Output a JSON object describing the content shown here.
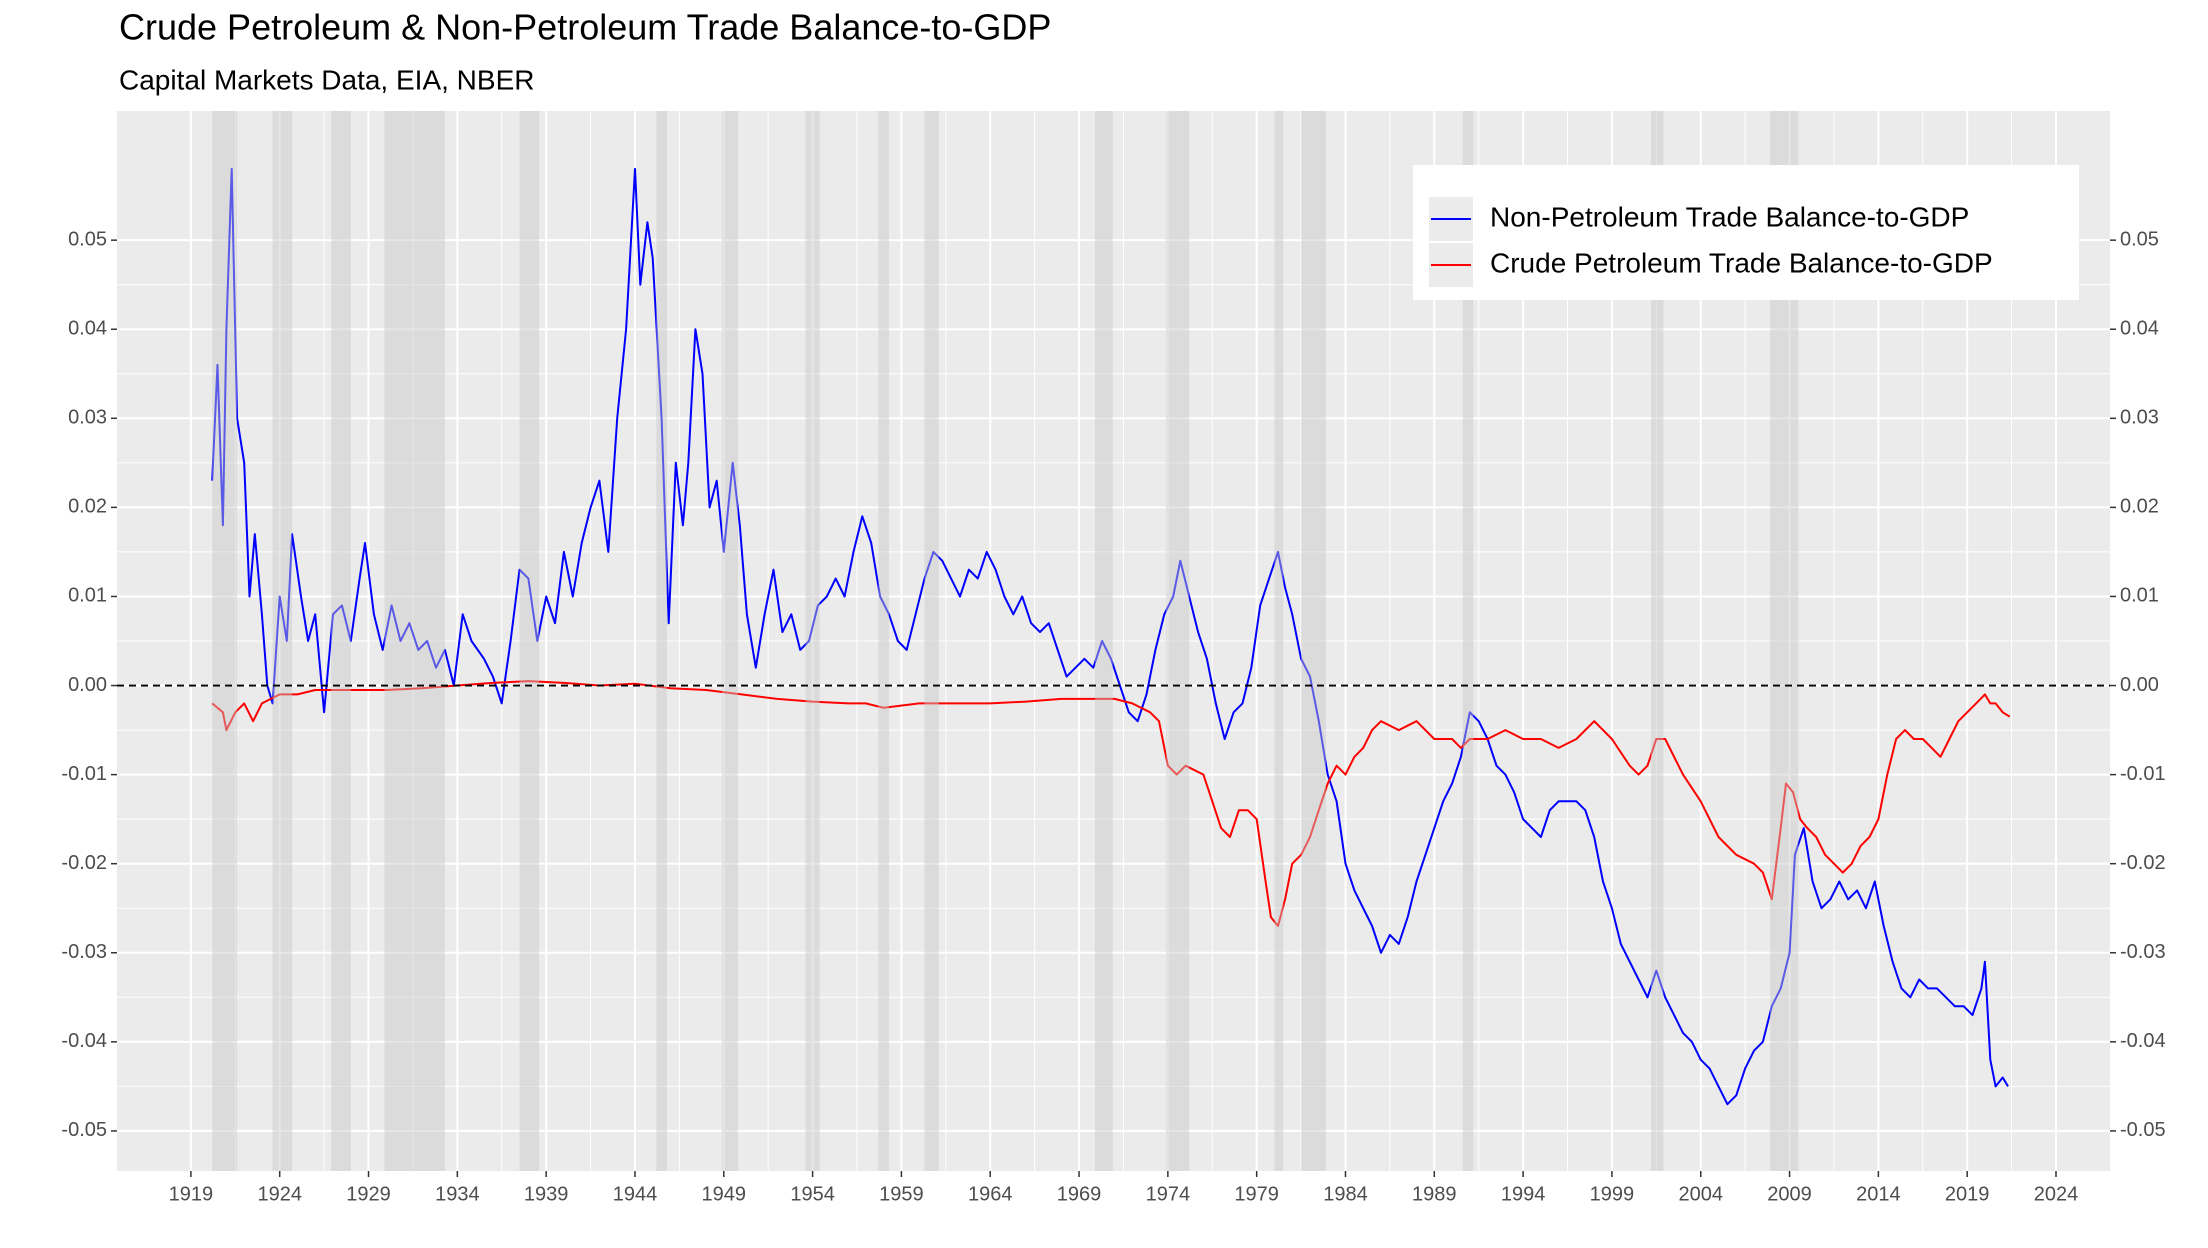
{
  "chart_data": {
    "type": "line",
    "title": "Crude Petroleum & Non-Petroleum Trade Balance-to-GDP",
    "subtitle": "Capital Markets Data, EIA, NBER",
    "series": [
      {
        "name": "Non-Petroleum Trade Balance-to-GDP",
        "color": "#0000ff",
        "x": [
          1920.2,
          1920.5,
          1920.8,
          1921.0,
          1921.3,
          1921.6,
          1922.0,
          1922.3,
          1922.6,
          1923.0,
          1923.3,
          1923.6,
          1924.0,
          1924.4,
          1924.7,
          1925.2,
          1925.6,
          1926.0,
          1926.5,
          1927.0,
          1927.5,
          1928.0,
          1928.5,
          1928.8,
          1929.3,
          1929.8,
          1930.3,
          1930.8,
          1931.3,
          1931.8,
          1932.3,
          1932.8,
          1933.3,
          1933.8,
          1934.3,
          1934.8,
          1935.5,
          1936.0,
          1936.5,
          1937.0,
          1937.5,
          1938.0,
          1938.5,
          1939.0,
          1939.5,
          1940.0,
          1940.5,
          1941.0,
          1941.5,
          1942.0,
          1942.5,
          1943.0,
          1943.5,
          1944.0,
          1944.3,
          1944.7,
          1945.0,
          1945.5,
          1945.9,
          1946.3,
          1946.7,
          1947.0,
          1947.4,
          1947.8,
          1948.2,
          1948.6,
          1949.0,
          1949.5,
          1949.9,
          1950.3,
          1950.8,
          1951.3,
          1951.8,
          1952.3,
          1952.8,
          1953.3,
          1953.8,
          1954.3,
          1954.8,
          1955.3,
          1955.8,
          1956.3,
          1956.8,
          1957.3,
          1957.8,
          1958.3,
          1958.8,
          1959.3,
          1959.8,
          1960.3,
          1960.8,
          1961.3,
          1961.8,
          1962.3,
          1962.8,
          1963.3,
          1963.8,
          1964.3,
          1964.8,
          1965.3,
          1965.8,
          1966.3,
          1966.8,
          1967.3,
          1967.8,
          1968.3,
          1968.8,
          1969.3,
          1969.8,
          1970.3,
          1970.8,
          1971.3,
          1971.8,
          1972.3,
          1972.8,
          1973.3,
          1973.8,
          1974.3,
          1974.7,
          1975.2,
          1975.7,
          1976.2,
          1976.7,
          1977.2,
          1977.7,
          1978.2,
          1978.7,
          1979.2,
          1979.7,
          1980.2,
          1980.6,
          1981.0,
          1981.5,
          1982.0,
          1982.5,
          1983.0,
          1983.5,
          1984.0,
          1984.5,
          1985.0,
          1985.5,
          1986.0,
          1986.5,
          1987.0,
          1987.5,
          1988.0,
          1988.5,
          1989.0,
          1989.5,
          1990.0,
          1990.5,
          1991.0,
          1991.5,
          1992.0,
          1992.5,
          1993.0,
          1993.5,
          1994.0,
          1994.5,
          1995.0,
          1995.5,
          1996.0,
          1996.5,
          1997.0,
          1997.5,
          1998.0,
          1998.5,
          1999.0,
          1999.5,
          2000.0,
          2000.5,
          2001.0,
          2001.5,
          2002.0,
          2002.5,
          2003.0,
          2003.5,
          2004.0,
          2004.5,
          2005.0,
          2005.5,
          2006.0,
          2006.5,
          2007.0,
          2007.5,
          2008.0,
          2008.5,
          2009.0,
          2009.3,
          2009.8,
          2010.3,
          2010.8,
          2011.3,
          2011.8,
          2012.3,
          2012.8,
          2013.3,
          2013.8,
          2014.3,
          2014.8,
          2015.3,
          2015.8,
          2016.3,
          2016.8,
          2017.3,
          2017.8,
          2018.3,
          2018.8,
          2019.3,
          2019.8,
          2020.0,
          2020.3,
          2020.6,
          2021.0,
          2021.3
        ],
        "values": [
          0.023,
          0.036,
          0.018,
          0.04,
          0.058,
          0.03,
          0.025,
          0.01,
          0.017,
          0.008,
          0.0,
          -0.002,
          0.01,
          0.005,
          0.017,
          0.01,
          0.005,
          0.008,
          -0.003,
          0.008,
          0.009,
          0.005,
          0.012,
          0.016,
          0.008,
          0.004,
          0.009,
          0.005,
          0.007,
          0.004,
          0.005,
          0.002,
          0.004,
          0.0,
          0.008,
          0.005,
          0.003,
          0.001,
          -0.002,
          0.005,
          0.013,
          0.012,
          0.005,
          0.01,
          0.007,
          0.015,
          0.01,
          0.016,
          0.02,
          0.023,
          0.015,
          0.03,
          0.04,
          0.058,
          0.045,
          0.052,
          0.048,
          0.03,
          0.007,
          0.025,
          0.018,
          0.025,
          0.04,
          0.035,
          0.02,
          0.023,
          0.015,
          0.025,
          0.018,
          0.008,
          0.002,
          0.008,
          0.013,
          0.006,
          0.008,
          0.004,
          0.005,
          0.009,
          0.01,
          0.012,
          0.01,
          0.015,
          0.019,
          0.016,
          0.01,
          0.008,
          0.005,
          0.004,
          0.008,
          0.012,
          0.015,
          0.014,
          0.012,
          0.01,
          0.013,
          0.012,
          0.015,
          0.013,
          0.01,
          0.008,
          0.01,
          0.007,
          0.006,
          0.007,
          0.004,
          0.001,
          0.002,
          0.003,
          0.002,
          0.005,
          0.003,
          0.0,
          -0.003,
          -0.004,
          -0.001,
          0.004,
          0.008,
          0.01,
          0.014,
          0.01,
          0.006,
          0.003,
          -0.002,
          -0.006,
          -0.003,
          -0.002,
          0.002,
          0.009,
          0.012,
          0.015,
          0.011,
          0.008,
          0.003,
          0.001,
          -0.004,
          -0.01,
          -0.013,
          -0.02,
          -0.023,
          -0.025,
          -0.027,
          -0.03,
          -0.028,
          -0.029,
          -0.026,
          -0.022,
          -0.019,
          -0.016,
          -0.013,
          -0.011,
          -0.008,
          -0.003,
          -0.004,
          -0.006,
          -0.009,
          -0.01,
          -0.012,
          -0.015,
          -0.016,
          -0.017,
          -0.014,
          -0.013,
          -0.013,
          -0.013,
          -0.014,
          -0.017,
          -0.022,
          -0.025,
          -0.029,
          -0.031,
          -0.033,
          -0.035,
          -0.032,
          -0.035,
          -0.037,
          -0.039,
          -0.04,
          -0.042,
          -0.043,
          -0.045,
          -0.047,
          -0.046,
          -0.043,
          -0.041,
          -0.04,
          -0.036,
          -0.034,
          -0.03,
          -0.019,
          -0.016,
          -0.022,
          -0.025,
          -0.024,
          -0.022,
          -0.024,
          -0.023,
          -0.025,
          -0.022,
          -0.027,
          -0.031,
          -0.034,
          -0.035,
          -0.033,
          -0.034,
          -0.034,
          -0.035,
          -0.036,
          -0.036,
          -0.037,
          -0.034,
          -0.031,
          -0.042,
          -0.045,
          -0.044,
          -0.045
        ]
      },
      {
        "name": "Crude Petroleum Trade Balance-to-GDP",
        "color": "#ff0000",
        "x": [
          1920.2,
          1920.8,
          1921.0,
          1921.5,
          1922.0,
          1922.5,
          1923.0,
          1924,
          1925,
          1926,
          1928,
          1930,
          1932,
          1934,
          1936,
          1938,
          1940,
          1942,
          1944,
          1946,
          1948,
          1950,
          1952,
          1954,
          1956,
          1957,
          1958,
          1960,
          1962,
          1964,
          1966,
          1968,
          1970,
          1971,
          1972,
          1973,
          1973.5,
          1974,
          1974.5,
          1975,
          1976,
          1976.5,
          1977,
          1977.5,
          1978,
          1978.5,
          1979,
          1979.5,
          1979.8,
          1980.2,
          1980.6,
          1981.0,
          1981.5,
          1982.0,
          1982.5,
          1983.0,
          1983.5,
          1984.0,
          1984.5,
          1985,
          1985.5,
          1986,
          1987,
          1988,
          1989,
          1990,
          1990.5,
          1991,
          1992,
          1993,
          1994,
          1995,
          1996,
          1997,
          1998,
          1999,
          2000,
          2000.5,
          2001,
          2001.5,
          2002,
          2003,
          2004,
          2005,
          2006,
          2007,
          2007.5,
          2008,
          2008.5,
          2008.8,
          2009.2,
          2009.6,
          2010,
          2010.5,
          2011,
          2011.5,
          2012,
          2012.5,
          2013,
          2013.5,
          2014,
          2014.5,
          2015,
          2015.5,
          2016,
          2016.5,
          2017,
          2017.5,
          2018,
          2018.5,
          2019,
          2019.5,
          2020,
          2020.3,
          2020.6,
          2021,
          2021.4
        ],
        "values": [
          -0.002,
          -0.003,
          -0.005,
          -0.003,
          -0.002,
          -0.004,
          -0.002,
          -0.001,
          -0.001,
          -0.0005,
          -0.0005,
          -0.0005,
          -0.0003,
          0.0,
          0.0003,
          0.0005,
          0.0003,
          0.0,
          0.0002,
          -0.0003,
          -0.0005,
          -0.001,
          -0.0015,
          -0.0018,
          -0.002,
          -0.002,
          -0.0025,
          -0.002,
          -0.002,
          -0.002,
          -0.0018,
          -0.0015,
          -0.0015,
          -0.0015,
          -0.002,
          -0.003,
          -0.004,
          -0.009,
          -0.01,
          -0.009,
          -0.01,
          -0.013,
          -0.016,
          -0.017,
          -0.014,
          -0.014,
          -0.015,
          -0.022,
          -0.026,
          -0.027,
          -0.024,
          -0.02,
          -0.019,
          -0.017,
          -0.014,
          -0.011,
          -0.009,
          -0.01,
          -0.008,
          -0.007,
          -0.005,
          -0.004,
          -0.005,
          -0.004,
          -0.006,
          -0.006,
          -0.007,
          -0.006,
          -0.006,
          -0.005,
          -0.006,
          -0.006,
          -0.007,
          -0.006,
          -0.004,
          -0.006,
          -0.009,
          -0.01,
          -0.009,
          -0.006,
          -0.006,
          -0.01,
          -0.013,
          -0.017,
          -0.019,
          -0.02,
          -0.021,
          -0.024,
          -0.016,
          -0.011,
          -0.012,
          -0.015,
          -0.016,
          -0.017,
          -0.019,
          -0.02,
          -0.021,
          -0.02,
          -0.018,
          -0.017,
          -0.015,
          -0.01,
          -0.006,
          -0.005,
          -0.006,
          -0.006,
          -0.007,
          -0.008,
          -0.006,
          -0.004,
          -0.003,
          -0.002,
          -0.001,
          -0.002,
          -0.002,
          -0.003,
          -0.0035
        ]
      }
    ],
    "recessions": [
      [
        1920.2,
        1921.6
      ],
      [
        1923.6,
        1924.7
      ],
      [
        1926.9,
        1928.0
      ],
      [
        1929.9,
        1933.3
      ],
      [
        1937.5,
        1938.6
      ],
      [
        1945.2,
        1945.8
      ],
      [
        1948.9,
        1949.8
      ],
      [
        1953.6,
        1954.4
      ],
      [
        1957.7,
        1958.3
      ],
      [
        1960.3,
        1961.1
      ],
      [
        1969.9,
        1970.9
      ],
      [
        1973.9,
        1975.2
      ],
      [
        1980.0,
        1980.5
      ],
      [
        1981.5,
        1982.9
      ],
      [
        1990.6,
        1991.2
      ],
      [
        2001.2,
        2001.9
      ],
      [
        2007.9,
        2009.5
      ]
    ],
    "hline": 0,
    "xlim": [
      1914.84,
      2027.04
    ],
    "xticks": [
      1919,
      1924,
      1929,
      1934,
      1939,
      1944,
      1949,
      1954,
      1959,
      1964,
      1969,
      1974,
      1979,
      1984,
      1989,
      1994,
      1999,
      2004,
      2009,
      2014,
      2019,
      2024
    ],
    "ylim": [
      -0.0545,
      0.0645
    ],
    "yticks": [
      -0.05,
      -0.04,
      -0.03,
      -0.02,
      -0.01,
      {
        "value": 0,
        "label": "0.00"
      },
      0.01,
      0.02,
      0.03,
      0.04,
      0.05
    ],
    "grid": true,
    "secondary_y_labels": true,
    "legend": "top-right"
  }
}
